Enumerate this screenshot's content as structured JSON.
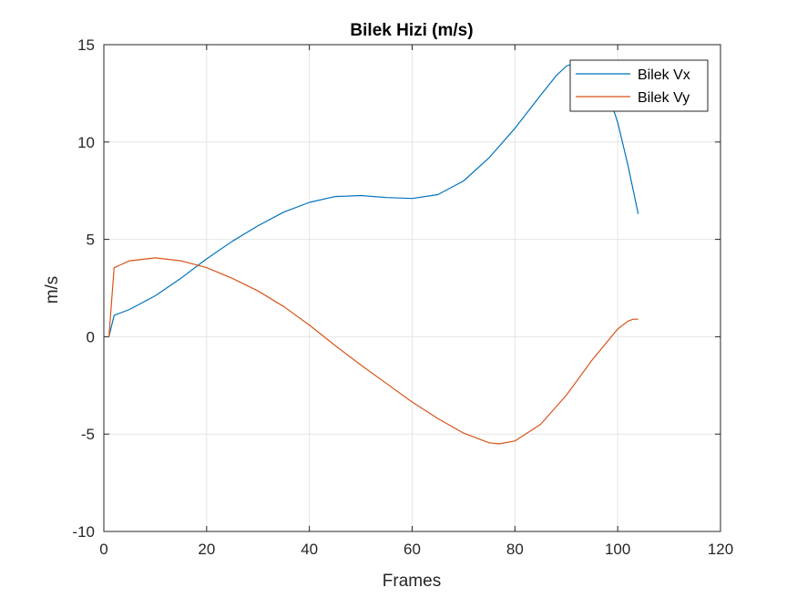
{
  "chart_data": {
    "type": "line",
    "title": "Bilek Hizi (m/s)",
    "xlabel": "Frames",
    "ylabel": "m/s",
    "xlim": [
      0,
      120
    ],
    "ylim": [
      -10,
      15
    ],
    "xticks": [
      0,
      20,
      40,
      60,
      80,
      100,
      120
    ],
    "yticks": [
      -10,
      -5,
      0,
      5,
      10,
      15
    ],
    "grid": true,
    "legend_position": "top-right",
    "series": [
      {
        "name": "Bilek Vx",
        "color": "#0072BD",
        "points": [
          [
            1,
            0
          ],
          [
            2,
            1.1
          ],
          [
            5,
            1.4
          ],
          [
            10,
            2.1
          ],
          [
            15,
            3.0
          ],
          [
            20,
            4.0
          ],
          [
            25,
            4.9
          ],
          [
            30,
            5.7
          ],
          [
            35,
            6.4
          ],
          [
            40,
            6.9
          ],
          [
            45,
            7.2
          ],
          [
            50,
            7.25
          ],
          [
            55,
            7.15
          ],
          [
            60,
            7.1
          ],
          [
            65,
            7.3
          ],
          [
            70,
            8.0
          ],
          [
            75,
            9.2
          ],
          [
            80,
            10.7
          ],
          [
            85,
            12.4
          ],
          [
            88,
            13.4
          ],
          [
            90,
            13.9
          ],
          [
            92,
            14.1
          ],
          [
            94,
            14.0
          ],
          [
            96,
            13.5
          ],
          [
            98,
            12.6
          ],
          [
            100,
            11.0
          ],
          [
            102,
            8.8
          ],
          [
            104,
            6.3
          ]
        ]
      },
      {
        "name": "Bilek Vy",
        "color": "#D95319",
        "points": [
          [
            1,
            0
          ],
          [
            2,
            3.55
          ],
          [
            5,
            3.9
          ],
          [
            10,
            4.05
          ],
          [
            15,
            3.9
          ],
          [
            20,
            3.55
          ],
          [
            25,
            3.0
          ],
          [
            30,
            2.35
          ],
          [
            35,
            1.55
          ],
          [
            40,
            0.6
          ],
          [
            45,
            -0.45
          ],
          [
            50,
            -1.45
          ],
          [
            55,
            -2.4
          ],
          [
            60,
            -3.35
          ],
          [
            65,
            -4.2
          ],
          [
            70,
            -4.95
          ],
          [
            75,
            -5.45
          ],
          [
            77,
            -5.5
          ],
          [
            80,
            -5.35
          ],
          [
            85,
            -4.5
          ],
          [
            90,
            -3.0
          ],
          [
            95,
            -1.2
          ],
          [
            100,
            0.4
          ],
          [
            102,
            0.8
          ],
          [
            103,
            0.9
          ],
          [
            104,
            0.9
          ]
        ]
      }
    ]
  }
}
